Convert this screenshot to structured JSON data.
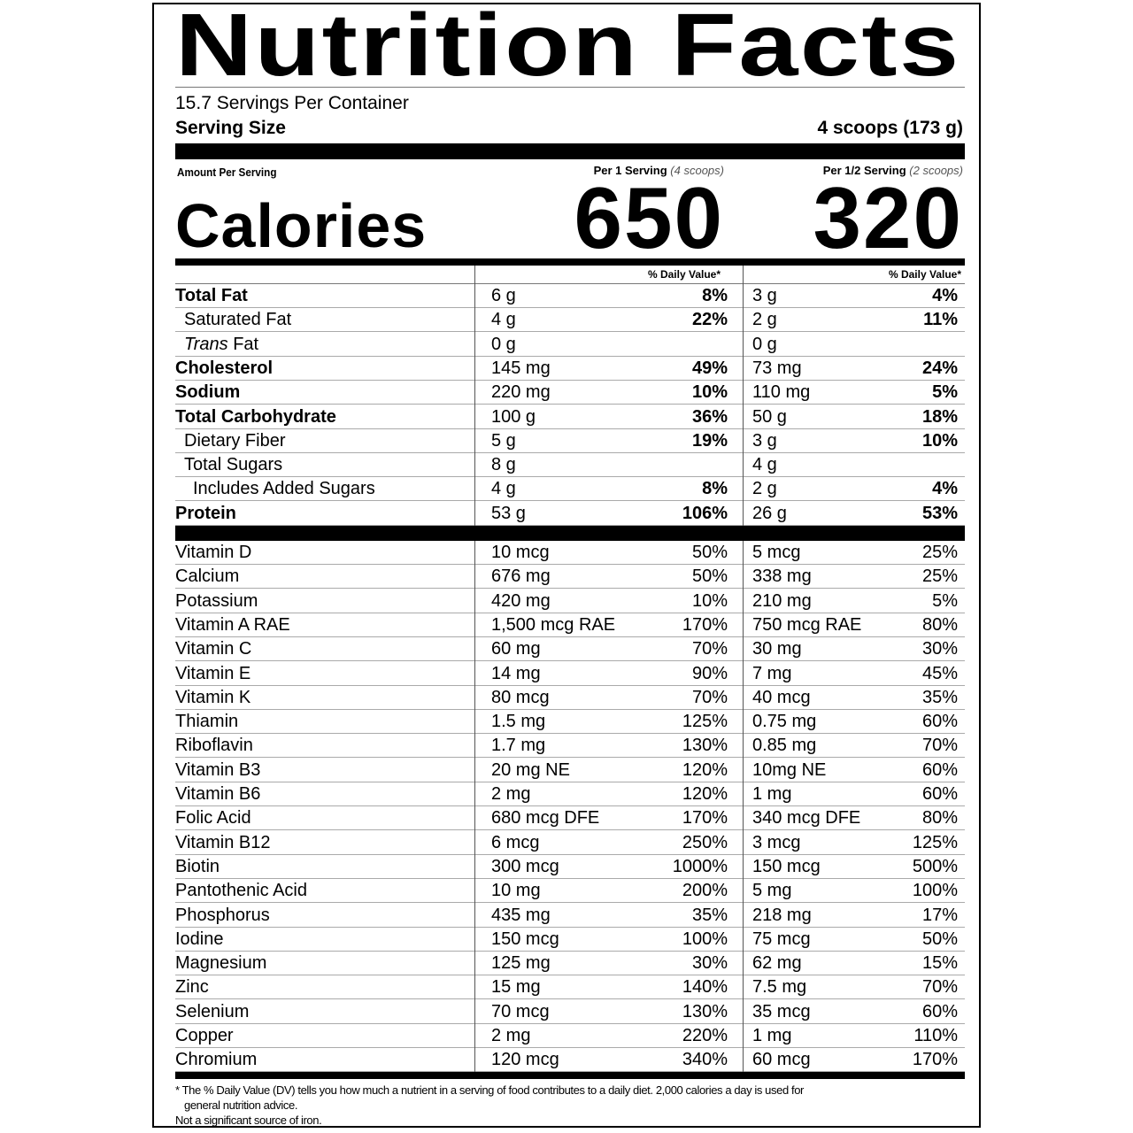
{
  "title": "Nutrition Facts",
  "servings_per_container": "15.7 Servings Per Container",
  "serving_size_label": "Serving Size",
  "serving_size_value": "4 scoops (173 g)",
  "amount_per_serving": "Amount Per Serving",
  "columns": [
    {
      "label": "Per 1 Serving",
      "note": "(4 scoops)",
      "calories": "650",
      "dv_header": "% Daily Value*"
    },
    {
      "label": "Per 1/2 Serving",
      "note": "(2 scoops)",
      "calories": "320",
      "dv_header": "% Daily Value*"
    }
  ],
  "calories_label": "Calories",
  "macros": [
    {
      "name": "Total Fat",
      "bold": true,
      "indent": 0,
      "v1": "6 g",
      "p1": "8%",
      "v2": "3 g",
      "p2": "4%"
    },
    {
      "name": "Saturated Fat",
      "bold": false,
      "indent": 1,
      "v1": "4 g",
      "p1": "22%",
      "v2": "2 g",
      "p2": "11%"
    },
    {
      "name": "Trans Fat",
      "italic_prefix": "Trans",
      "bold": false,
      "indent": 1,
      "v1": "0 g",
      "p1": "",
      "v2": "0 g",
      "p2": ""
    },
    {
      "name": "Cholesterol",
      "bold": true,
      "indent": 0,
      "v1": "145 mg",
      "p1": "49%",
      "v2": "73 mg",
      "p2": "24%"
    },
    {
      "name": "Sodium",
      "bold": true,
      "indent": 0,
      "v1": "220 mg",
      "p1": "10%",
      "v2": "110 mg",
      "p2": "5%"
    },
    {
      "name": "Total Carbohydrate",
      "bold": true,
      "indent": 0,
      "v1": "100 g",
      "p1": "36%",
      "v2": "50 g",
      "p2": "18%"
    },
    {
      "name": "Dietary Fiber",
      "bold": false,
      "indent": 1,
      "v1": "5 g",
      "p1": "19%",
      "v2": "3 g",
      "p2": "10%"
    },
    {
      "name": "Total Sugars",
      "bold": false,
      "indent": 1,
      "v1": "8 g",
      "p1": "",
      "v2": "4 g",
      "p2": ""
    },
    {
      "name": "Includes Added Sugars",
      "bold": false,
      "indent": 2,
      "v1": "4 g",
      "p1": "8%",
      "v2": "2 g",
      "p2": "4%"
    },
    {
      "name": "Protein",
      "bold": true,
      "indent": 0,
      "v1": "53 g",
      "p1": "106%",
      "v2": "26 g",
      "p2": "53%"
    }
  ],
  "micros": [
    {
      "name": "Vitamin D",
      "v1": "10 mcg",
      "p1": "50%",
      "v2": "5 mcg",
      "p2": "25%"
    },
    {
      "name": "Calcium",
      "v1": "676 mg",
      "p1": "50%",
      "v2": "338 mg",
      "p2": "25%"
    },
    {
      "name": "Potassium",
      "v1": "420 mg",
      "p1": "10%",
      "v2": "210 mg",
      "p2": "5%"
    },
    {
      "name": "Vitamin A RAE",
      "v1": "1,500 mcg RAE",
      "p1": "170%",
      "v2": "750 mcg RAE",
      "p2": "80%"
    },
    {
      "name": "Vitamin C",
      "v1": "60 mg",
      "p1": "70%",
      "v2": "30 mg",
      "p2": "30%"
    },
    {
      "name": "Vitamin E",
      "v1": "14 mg",
      "p1": "90%",
      "v2": "7 mg",
      "p2": "45%"
    },
    {
      "name": "Vitamin K",
      "v1": "80 mcg",
      "p1": "70%",
      "v2": "40 mcg",
      "p2": "35%"
    },
    {
      "name": "Thiamin",
      "v1": "1.5 mg",
      "p1": "125%",
      "v2": "0.75 mg",
      "p2": "60%"
    },
    {
      "name": "Riboflavin",
      "v1": "1.7 mg",
      "p1": "130%",
      "v2": "0.85 mg",
      "p2": "70%"
    },
    {
      "name": "Vitamin B3",
      "v1": "20 mg NE",
      "p1": "120%",
      "v2": "10mg NE",
      "p2": "60%"
    },
    {
      "name": "Vitamin B6",
      "v1": "2 mg",
      "p1": "120%",
      "v2": "1 mg",
      "p2": "60%"
    },
    {
      "name": "Folic Acid",
      "v1": "680 mcg DFE",
      "p1": "170%",
      "v2": "340 mcg DFE",
      "p2": "80%"
    },
    {
      "name": "Vitamin B12",
      "v1": "6 mcg",
      "p1": "250%",
      "v2": "3 mcg",
      "p2": "125%"
    },
    {
      "name": "Biotin",
      "v1": "300 mcg",
      "p1": "1000%",
      "v2": "150 mcg",
      "p2": "500%"
    },
    {
      "name": "Pantothenic Acid",
      "v1": "10 mg",
      "p1": "200%",
      "v2": "5 mg",
      "p2": "100%"
    },
    {
      "name": "Phosphorus",
      "v1": "435 mg",
      "p1": "35%",
      "v2": "218 mg",
      "p2": "17%"
    },
    {
      "name": "Iodine",
      "v1": "150 mcg",
      "p1": "100%",
      "v2": "75 mcg",
      "p2": "50%"
    },
    {
      "name": "Magnesium",
      "v1": "125 mg",
      "p1": "30%",
      "v2": "62 mg",
      "p2": "15%"
    },
    {
      "name": "Zinc",
      "v1": "15 mg",
      "p1": "140%",
      "v2": "7.5 mg",
      "p2": "70%"
    },
    {
      "name": "Selenium",
      "v1": "70 mcg",
      "p1": "130%",
      "v2": "35 mcg",
      "p2": "60%"
    },
    {
      "name": "Copper",
      "v1": "2 mg",
      "p1": "220%",
      "v2": "1 mg",
      "p2": "110%"
    },
    {
      "name": "Chromium",
      "v1": "120 mcg",
      "p1": "340%",
      "v2": "60 mcg",
      "p2": "170%"
    }
  ],
  "footnote": {
    "line1": "* The % Daily Value (DV) tells you how much a nutrient in a serving of food contributes to a daily diet. 2,000 calories a day is used for",
    "line2": "general nutrition advice.",
    "line3": "Not a significant source of iron."
  }
}
